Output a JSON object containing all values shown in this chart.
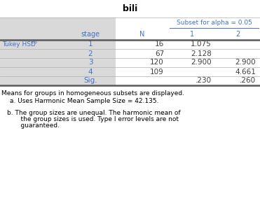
{
  "title": "bili",
  "subset_header": "Subset for alpha = 0.05",
  "rows": [
    {
      "stage": "1",
      "N": "16",
      "c1": "1.075",
      "c2": ""
    },
    {
      "stage": "2",
      "N": "67",
      "c1": "2.128",
      "c2": ""
    },
    {
      "stage": "3",
      "N": "120",
      "c1": "2.900",
      "c2": "2.900"
    },
    {
      "stage": "4",
      "N": "109",
      "c1": "",
      "c2": "4.661"
    },
    {
      "stage": "Sig.",
      "N": "",
      "c1": ".230",
      "c2": ".260"
    }
  ],
  "footnote0": "Means for groups in homogeneous subsets are displayed.",
  "footnote1": "a. Uses Harmonic Mean Sample Size = 42.135.",
  "footnote2": "b. The group sizes are unequal. The harmonic mean of",
  "footnote3": "    the group sizes is used. Type I error levels are not",
  "footnote4": "    guaranteed.",
  "bg_left": "#d9d9d9",
  "bg_right": "#ffffff",
  "blue": "#4472c4",
  "dark": "#404040",
  "thick_line": "#5a5a5a",
  "thin_line": "#b0b0b0",
  "title_fontsize": 9,
  "header_fontsize": 7,
  "cell_fontsize": 7.5,
  "foot_fontsize": 6.5
}
